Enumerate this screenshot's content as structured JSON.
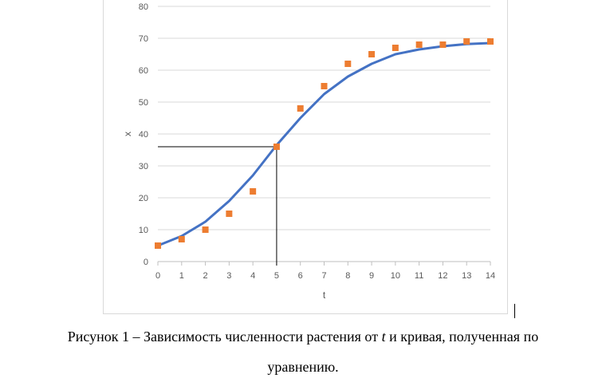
{
  "chart_data": {
    "type": "scatter",
    "xlabel": "t",
    "ylabel": "x",
    "xlim": [
      0,
      14
    ],
    "ylim": [
      0,
      80
    ],
    "x_ticks": [
      0,
      1,
      2,
      3,
      4,
      5,
      6,
      7,
      8,
      9,
      10,
      11,
      12,
      13,
      14
    ],
    "y_ticks": [
      0,
      10,
      20,
      30,
      40,
      50,
      60,
      70,
      80
    ],
    "grid": "horizontal",
    "legend": "none",
    "series": [
      {
        "kind": "points",
        "color": "#ed7d31",
        "x": [
          0,
          1,
          2,
          3,
          4,
          5,
          6,
          7,
          8,
          9,
          10,
          11,
          12,
          13,
          14
        ],
        "y": [
          5,
          7,
          10,
          15,
          22,
          36,
          48,
          55,
          62,
          65,
          67,
          68,
          68,
          69,
          69
        ]
      },
      {
        "kind": "line",
        "color": "#4472c4",
        "x": [
          0,
          1,
          2,
          3,
          4,
          5,
          6,
          7,
          8,
          9,
          10,
          11,
          12,
          13,
          14
        ],
        "y": [
          5,
          8,
          12.5,
          19,
          27,
          36.5,
          45,
          52.5,
          58,
          62,
          65,
          66.5,
          67.5,
          68.2,
          68.5
        ]
      }
    ],
    "guide": {
      "x": 5,
      "y": 36,
      "color": "#000000"
    }
  },
  "caption": {
    "before": "Рисунок 1 – Зависимость численности растения от ",
    "variable": "t",
    "after": " и кривая, полученная по",
    "line2": "уравнению."
  }
}
